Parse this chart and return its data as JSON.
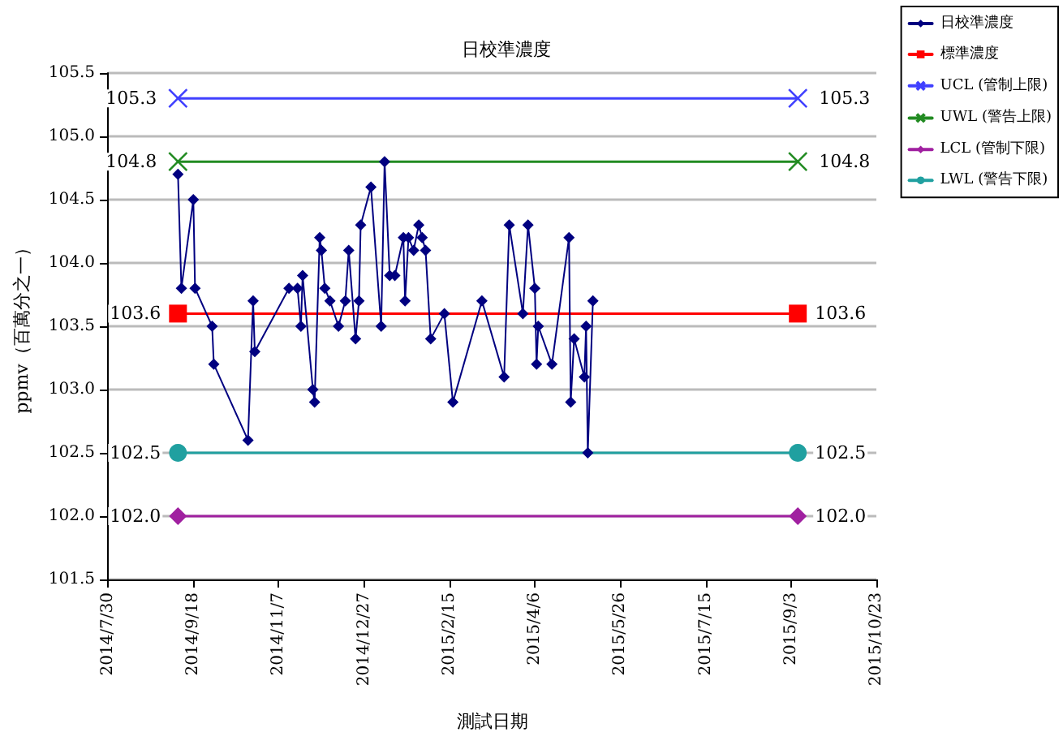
{
  "chart_data": {
    "type": "line",
    "title": "日校準濃度",
    "xlabel": "測試日期",
    "ylabel": "ppmv（百萬分之一）",
    "xlim": [
      "2014-07-30",
      "2015-10-23"
    ],
    "xticks": [
      {
        "value": "2014-07-30",
        "label": "2014/7/30"
      },
      {
        "value": "2014-09-18",
        "label": "2014/9/18"
      },
      {
        "value": "2014-11-07",
        "label": "2014/11/7"
      },
      {
        "value": "2014-12-27",
        "label": "2014/12/27"
      },
      {
        "value": "2015-02-15",
        "label": "2015/2/15"
      },
      {
        "value": "2015-04-06",
        "label": "2015/4/6"
      },
      {
        "value": "2015-05-26",
        "label": "2015/5/26"
      },
      {
        "value": "2015-07-15",
        "label": "2015/7/15"
      },
      {
        "value": "2015-09-03",
        "label": "2015/9/3"
      },
      {
        "value": "2015-10-23",
        "label": "2015/10/23"
      }
    ],
    "ylim": [
      101.5,
      105.5
    ],
    "yticks": [
      {
        "value": 101.5,
        "label": "101.5"
      },
      {
        "value": 102,
        "label": "102.0"
      },
      {
        "value": 102.5,
        "label": "102.5"
      },
      {
        "value": 103,
        "label": "103.0"
      },
      {
        "value": 103.5,
        "label": "103.5"
      },
      {
        "value": 104,
        "label": "104.0"
      },
      {
        "value": 104.5,
        "label": "104.5"
      },
      {
        "value": 105,
        "label": "105.0"
      },
      {
        "value": 105.5,
        "label": "105.5"
      }
    ],
    "grid": "y",
    "legend": "top right",
    "line_style": "solid",
    "series": [
      {
        "name": "日校準濃度",
        "color": "#000080",
        "marker": "diamond",
        "x": [
          "2014-09-09",
          "2014-09-11",
          "2014-09-18",
          "2014-09-19",
          "2014-09-29",
          "2014-09-30",
          "2014-10-20",
          "2014-10-23",
          "2014-10-24",
          "2014-11-13",
          "2014-11-18",
          "2014-11-20",
          "2014-11-21",
          "2014-11-27",
          "2014-11-28",
          "2014-12-01",
          "2014-12-02",
          "2014-12-04",
          "2014-12-07",
          "2014-12-12",
          "2014-12-16",
          "2014-12-18",
          "2014-12-22",
          "2014-12-24",
          "2014-12-25",
          "2014-12-31",
          "2015-01-06",
          "2015-01-08",
          "2015-01-11",
          "2015-01-14",
          "2015-01-19",
          "2015-01-20",
          "2015-01-22",
          "2015-01-25",
          "2015-01-28",
          "2015-01-30",
          "2015-02-01",
          "2015-02-04",
          "2015-02-12",
          "2015-02-17",
          "2015-03-06",
          "2015-03-19",
          "2015-03-22",
          "2015-03-30",
          "2015-04-02",
          "2015-04-06",
          "2015-04-07",
          "2015-04-08",
          "2015-04-16",
          "2015-04-26",
          "2015-04-27",
          "2015-04-29",
          "2015-05-05",
          "2015-05-06",
          "2015-05-07",
          "2015-05-10"
        ],
        "values": [
          104.7,
          103.8,
          104.5,
          103.8,
          103.5,
          103.2,
          102.6,
          103.7,
          103.3,
          103.8,
          103.8,
          103.5,
          103.9,
          103.0,
          102.9,
          104.2,
          104.1,
          103.8,
          103.7,
          103.5,
          103.7,
          104.1,
          103.4,
          103.7,
          104.3,
          104.6,
          103.5,
          104.8,
          103.9,
          103.9,
          104.2,
          103.7,
          104.2,
          104.1,
          104.3,
          104.2,
          104.1,
          103.4,
          103.6,
          102.9,
          103.7,
          103.1,
          104.3,
          103.6,
          104.3,
          103.8,
          103.2,
          103.5,
          103.2,
          104.2,
          102.9,
          103.4,
          103.1,
          103.5,
          102.5,
          103.7
        ]
      },
      {
        "name": "標準濃度",
        "color": "#ff0000",
        "marker": "square",
        "x": [
          "2014-09-09",
          "2015-09-07"
        ],
        "values": [
          103.6,
          103.6
        ],
        "value_labels": [
          "103.6",
          "103.6"
        ]
      },
      {
        "name": "UCL (管制上限)",
        "color": "#4040ff",
        "marker": "cross",
        "x": [
          "2014-09-09",
          "2015-09-07"
        ],
        "values": [
          105.3,
          105.3
        ],
        "value_labels": [
          "105.3",
          "105.3"
        ]
      },
      {
        "name": "UWL (警告上限)",
        "color": "#228b22",
        "marker": "cross",
        "x": [
          "2014-09-09",
          "2015-09-07"
        ],
        "values": [
          104.8,
          104.8
        ],
        "value_labels": [
          "104.8",
          "104.8"
        ]
      },
      {
        "name": "LCL (管制下限)",
        "color": "#a020a0",
        "marker": "diamond",
        "x": [
          "2014-09-09",
          "2015-09-07"
        ],
        "values": [
          102.0,
          102.0
        ],
        "value_labels": [
          "102.0",
          "102.0"
        ]
      },
      {
        "name": "LWL (警告下限)",
        "color": "#20a0a0",
        "marker": "circle",
        "x": [
          "2014-09-09",
          "2015-09-07"
        ],
        "values": [
          102.5,
          102.5
        ],
        "value_labels": [
          "102.5",
          "102.5"
        ]
      }
    ]
  }
}
